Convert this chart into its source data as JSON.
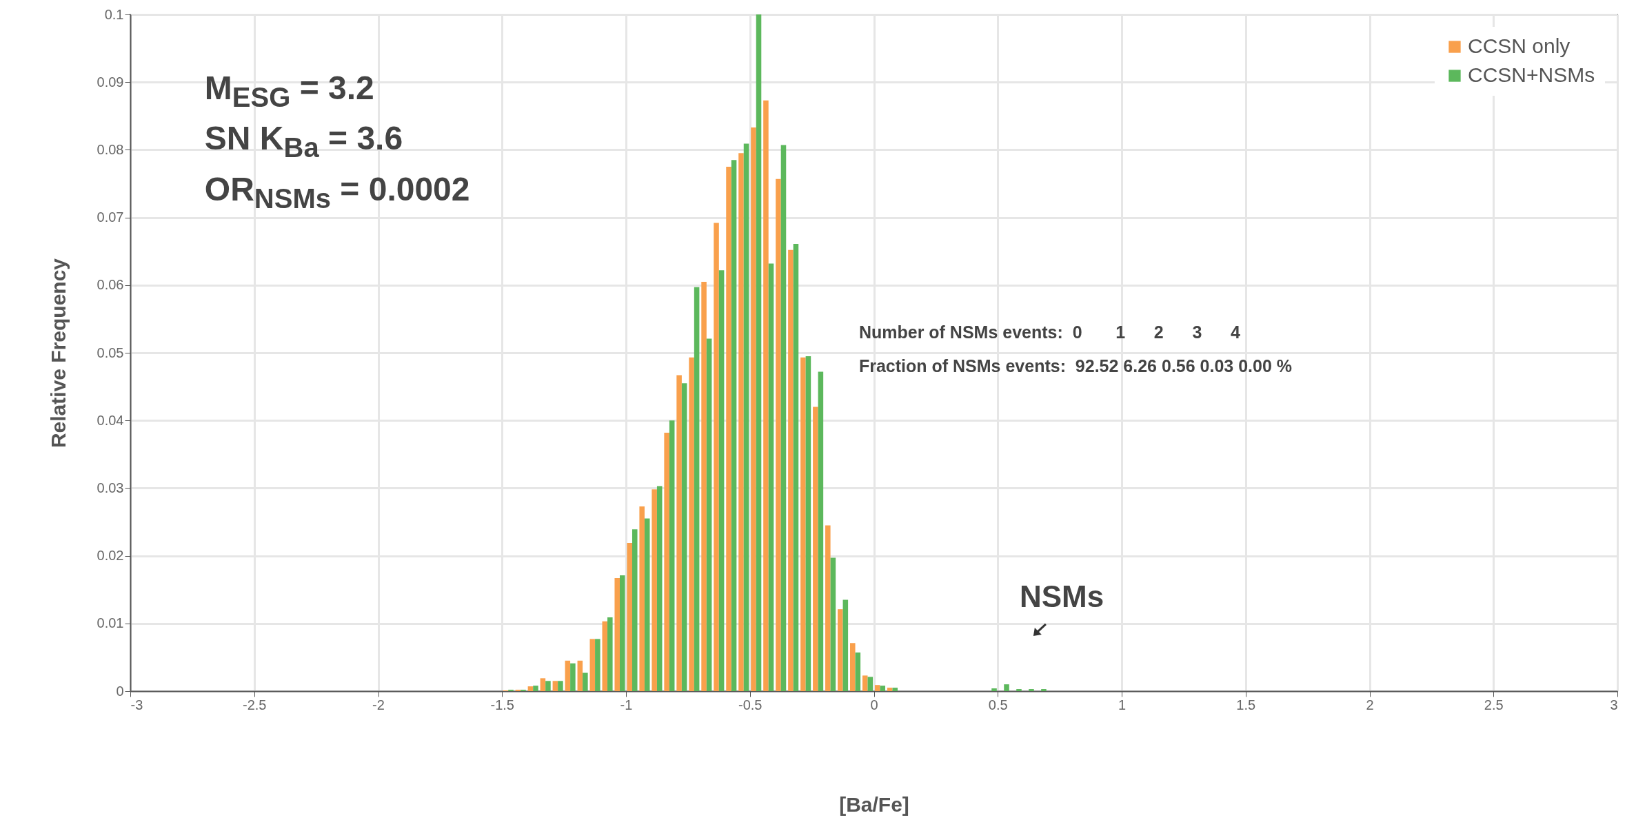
{
  "chart_data": {
    "type": "histogram",
    "xlabel": "[Ba/Fe]",
    "ylabel": "Relative Frequency",
    "bins": [
      -1.5,
      -1.45,
      -1.4,
      -1.35,
      -1.3,
      -1.25,
      -1.2,
      -1.15,
      -1.1,
      -1.05,
      -1.0,
      -0.95,
      -0.9,
      -0.85,
      -0.8,
      -0.75,
      -0.7,
      -0.65,
      -0.6,
      -0.55,
      -0.5,
      -0.45,
      -0.4,
      -0.35,
      -0.3,
      -0.25,
      -0.2,
      -0.15,
      -0.1,
      -0.05,
      0,
      0.05,
      0.1,
      0.15,
      0.2,
      0.25,
      0.3,
      0.35,
      0.4,
      0.45,
      0.5,
      0.55,
      0.6,
      0.65,
      0.7
    ],
    "series": [
      {
        "name": "CCSN only",
        "color": "#f9a04c",
        "values": [
          0.0001,
          0.0002,
          0.0007,
          0.0019,
          0.0015,
          0.0045,
          0.0045,
          0.0077,
          0.0103,
          0.0167,
          0.0219,
          0.0273,
          0.0298,
          0.0382,
          0.0467,
          0.0493,
          0.0605,
          0.0692,
          0.0775,
          0.0795,
          0.0833,
          0.0873,
          0.0757,
          0.0652,
          0.0493,
          0.042,
          0.0245,
          0.0121,
          0.0071,
          0.0023,
          0.0009,
          0.0005,
          0,
          0,
          0,
          0,
          0,
          0,
          0,
          0,
          0,
          0,
          0,
          0
        ]
      },
      {
        "name": "CCSN+NSMs",
        "color": "#5cb85c",
        "values": [
          0.0002,
          0.0002,
          0.0008,
          0.0015,
          0.0015,
          0.0041,
          0.0027,
          0.0077,
          0.0109,
          0.0171,
          0.0239,
          0.0255,
          0.0303,
          0.04,
          0.0455,
          0.0597,
          0.0521,
          0.0622,
          0.0785,
          0.0809,
          0.1,
          0.0632,
          0.0807,
          0.0661,
          0.0495,
          0.0472,
          0.0197,
          0.0135,
          0.0057,
          0.0021,
          0.0008,
          0.0005,
          0,
          0,
          0,
          0,
          0,
          0,
          0,
          0.0004,
          0.001,
          0.0003,
          0.0003,
          0.0003
        ]
      }
    ],
    "xlim": [
      -3,
      3
    ],
    "xticks": [
      -3,
      -2.5,
      -2,
      -1.5,
      -1,
      -0.5,
      0,
      0.5,
      1,
      1.5,
      2,
      2.5,
      3
    ],
    "ylim": [
      0,
      0.1
    ],
    "yticks": [
      0,
      0.01,
      0.02,
      0.03,
      0.04,
      0.05,
      0.06,
      0.07,
      0.08,
      0.09,
      0.1
    ],
    "grid": true,
    "legend": "top right",
    "annotations": [
      "M$_{ESG}$ = 3.2",
      "SN K$_{Ba}$ = 3.6",
      "OR$_{NSMs}$ = 0.0002",
      "Number of NSMs events:  0       1      2      3      4",
      "Fraction of NSMs events:  92.52 6.26 0.56 0.03 0.00 %",
      "NSMs"
    ]
  }
}
